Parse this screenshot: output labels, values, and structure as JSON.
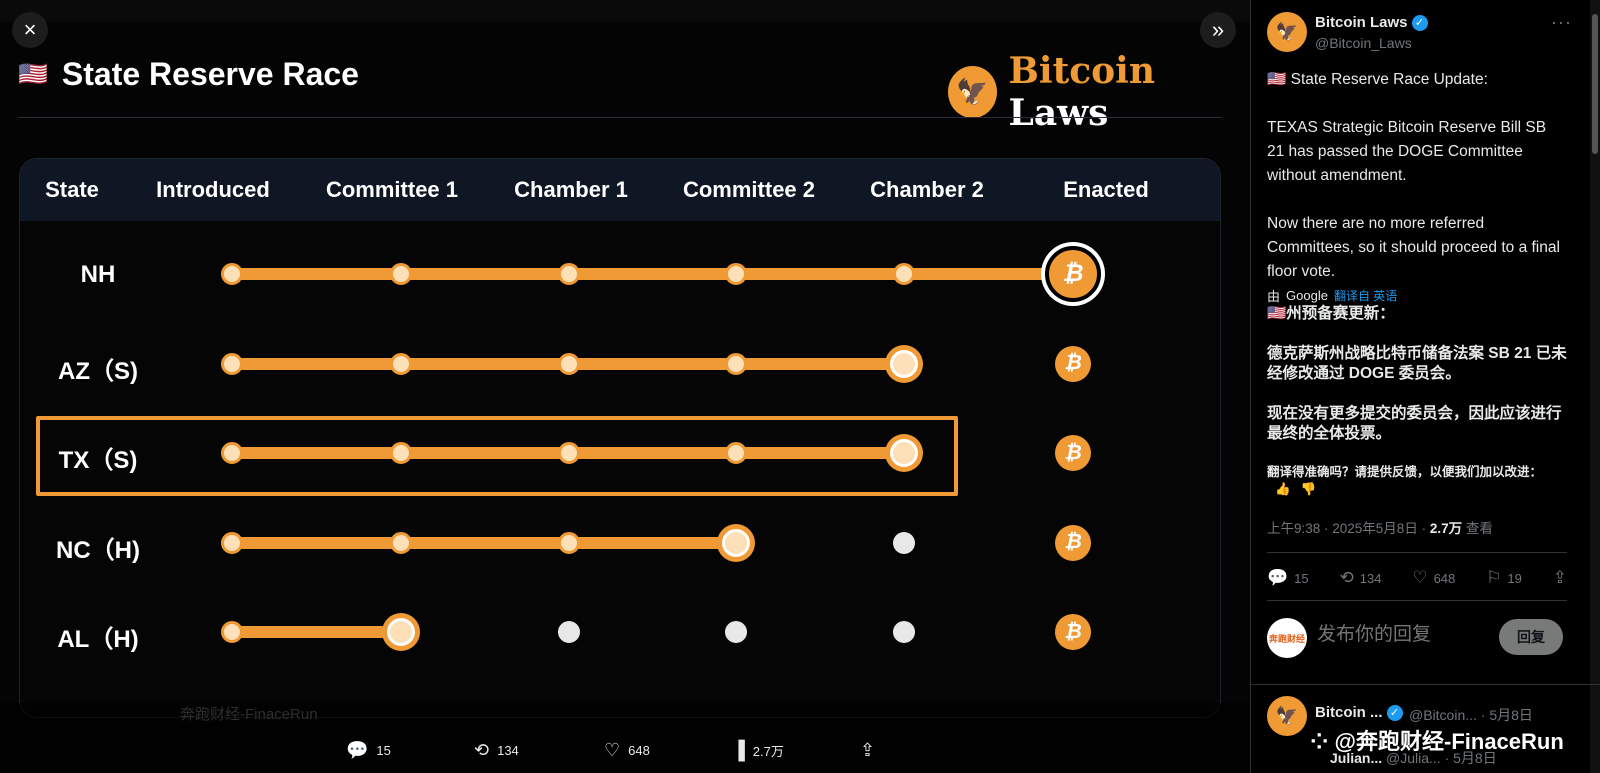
{
  "viewer": {
    "close_icon": "×",
    "expand_icon": "»",
    "flag": "🇺🇸",
    "image_title": "State Reserve Race",
    "brand_part1": "Bitcoin",
    "brand_part2": "Laws",
    "columns": [
      "State",
      "Introduced",
      "Committee 1",
      "Chamber 1",
      "Committee 2",
      "Chamber 2",
      "Enacted"
    ],
    "rows": [
      {
        "state": "NH",
        "progress_stage": 6
      },
      {
        "state": "AZ（S)",
        "progress_stage": 5
      },
      {
        "state": "TX（S)",
        "progress_stage": 5,
        "highlighted": true
      },
      {
        "state": "NC（H)",
        "progress_stage": 4
      },
      {
        "state": "AL（H)",
        "progress_stage": 2
      }
    ],
    "bottom_actions": {
      "replies": "15",
      "retweets": "134",
      "likes": "648",
      "views": "2.7万"
    },
    "ghost_name": "奔跑财经-FinaceRun"
  },
  "panel": {
    "author_name": "Bitcoin Laws",
    "author_handle": "@Bitcoin_Laws",
    "more_icon": "···",
    "tweet_text": "🇺🇸 State Reserve Race Update:\n\nTEXAS Strategic Bitcoin Reserve Bill SB 21 has passed the DOGE Committee without amendment.\n\nNow there are no more referred Committees, so it should proceed to a final floor vote.",
    "translated_prefix": "由",
    "translated_provider": "Google",
    "translated_link": "翻译自 英语",
    "translated_text": "🇺🇸州预备赛更新：\n\n德克萨斯州战略比特币储备法案 SB 21 已未经修改通过 DOGE 委员会。\n\n现在没有更多提交的委员会，因此应该进行最终的全体投票。",
    "feedback_text": "翻译得准确吗？请提供反馈，以便我们加以改进：",
    "time": "上午9:38 · 2025年5月8日 · ",
    "views_count": "2.7万",
    "views_label": " 查看",
    "replies": "15",
    "retweets": "134",
    "likes": "648",
    "bookmarks": "19",
    "reply_placeholder": "发布你的回复",
    "reply_button": "回复",
    "reply_avatar_text": "奔跑财经",
    "next_author": "Bitcoin ...",
    "next_meta": "@Bitcoin... · 5月8日",
    "watermark": "⁘ @奔跑财经-FinaceRun",
    "quoted_name": "Julian...",
    "quoted_meta": "@Julia... · 5月8日"
  }
}
